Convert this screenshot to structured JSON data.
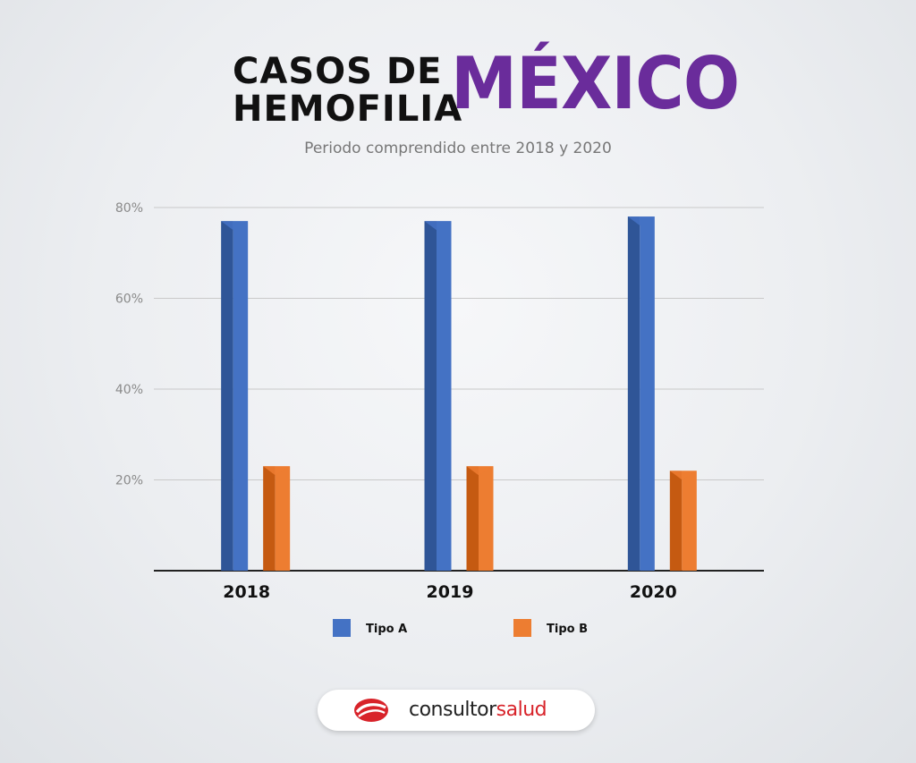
{
  "title": {
    "line1": "CASOS DE",
    "line2": "HEMOFILIA",
    "country": "MÉXICO"
  },
  "subtitle": "Periodo comprendido entre 2018 y 2020",
  "colors": {
    "tipo_a": "#4472c4",
    "tipo_a_dark": "#2f5597",
    "tipo_b": "#ed7d31",
    "tipo_b_dark": "#c55a11",
    "title_accent": "#6a2c9b",
    "brand_red": "#d8232a"
  },
  "chart_data": {
    "type": "bar",
    "title": "CASOS DE HEMOFILIA MÉXICO",
    "subtitle": "Periodo comprendido entre 2018 y 2020",
    "categories": [
      "2018",
      "2019",
      "2020"
    ],
    "series": [
      {
        "name": "Tipo A",
        "values": [
          77,
          77,
          78
        ]
      },
      {
        "name": "Tipo B",
        "values": [
          23,
          23,
          22
        ]
      }
    ],
    "xlabel": "",
    "ylabel": "",
    "ylim": [
      0,
      80
    ],
    "yticks": [
      20,
      40,
      60,
      80
    ],
    "ytick_labels": [
      "20%",
      "40%",
      "60%",
      "80%"
    ],
    "grid": true,
    "legend": "bottom"
  },
  "brand": {
    "part1": "consultor",
    "part2": "salud",
    "icon": "consultorsalud-logo-icon"
  }
}
